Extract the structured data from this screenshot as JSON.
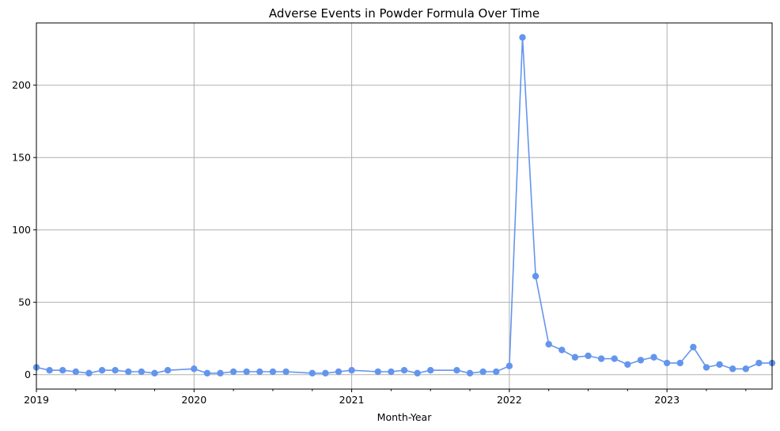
{
  "chart_data": {
    "type": "line",
    "title": "Adverse Events in Powder Formula Over Time",
    "xlabel": "Month-Year",
    "ylabel": "",
    "xlim": [
      "2019-01",
      "2023-09"
    ],
    "ylim": [
      -10,
      243
    ],
    "x_tick_labels": [
      "2019",
      "2020",
      "2021",
      "2022",
      "2023"
    ],
    "y_tick_values": [
      0,
      50,
      100,
      150,
      200
    ],
    "y_tick_labels": [
      "0",
      "50",
      "100",
      "150",
      "200"
    ],
    "grid": true,
    "color": "#6495ED",
    "series": [
      {
        "x": [
          "2019-01",
          "2019-02",
          "2019-03",
          "2019-04",
          "2019-05",
          "2019-06",
          "2019-07",
          "2019-08",
          "2019-09",
          "2019-10",
          "2019-11",
          "2020-01",
          "2020-02",
          "2020-03",
          "2020-04",
          "2020-05",
          "2020-06",
          "2020-07",
          "2020-08",
          "2020-10",
          "2020-11",
          "2020-12",
          "2021-01",
          "2021-03",
          "2021-04",
          "2021-05",
          "2021-06",
          "2021-07",
          "2021-09",
          "2021-10",
          "2021-11",
          "2021-12",
          "2022-01",
          "2022-02",
          "2022-03",
          "2022-04",
          "2022-05",
          "2022-06",
          "2022-07",
          "2022-08",
          "2022-09",
          "2022-10",
          "2022-11",
          "2022-12",
          "2023-01",
          "2023-02",
          "2023-03",
          "2023-04",
          "2023-05",
          "2023-06",
          "2023-07",
          "2023-08",
          "2023-09"
        ],
        "y": [
          5,
          3,
          3,
          2,
          1,
          3,
          3,
          2,
          2,
          1,
          3,
          4,
          1,
          1,
          2,
          2,
          2,
          2,
          2,
          1,
          1,
          2,
          3,
          2,
          2,
          3,
          1,
          3,
          3,
          1,
          2,
          2,
          6,
          233,
          68,
          21,
          17,
          12,
          13,
          11,
          11,
          7,
          10,
          12,
          8,
          8,
          19,
          5,
          7,
          4,
          4,
          8,
          8
        ]
      }
    ]
  }
}
